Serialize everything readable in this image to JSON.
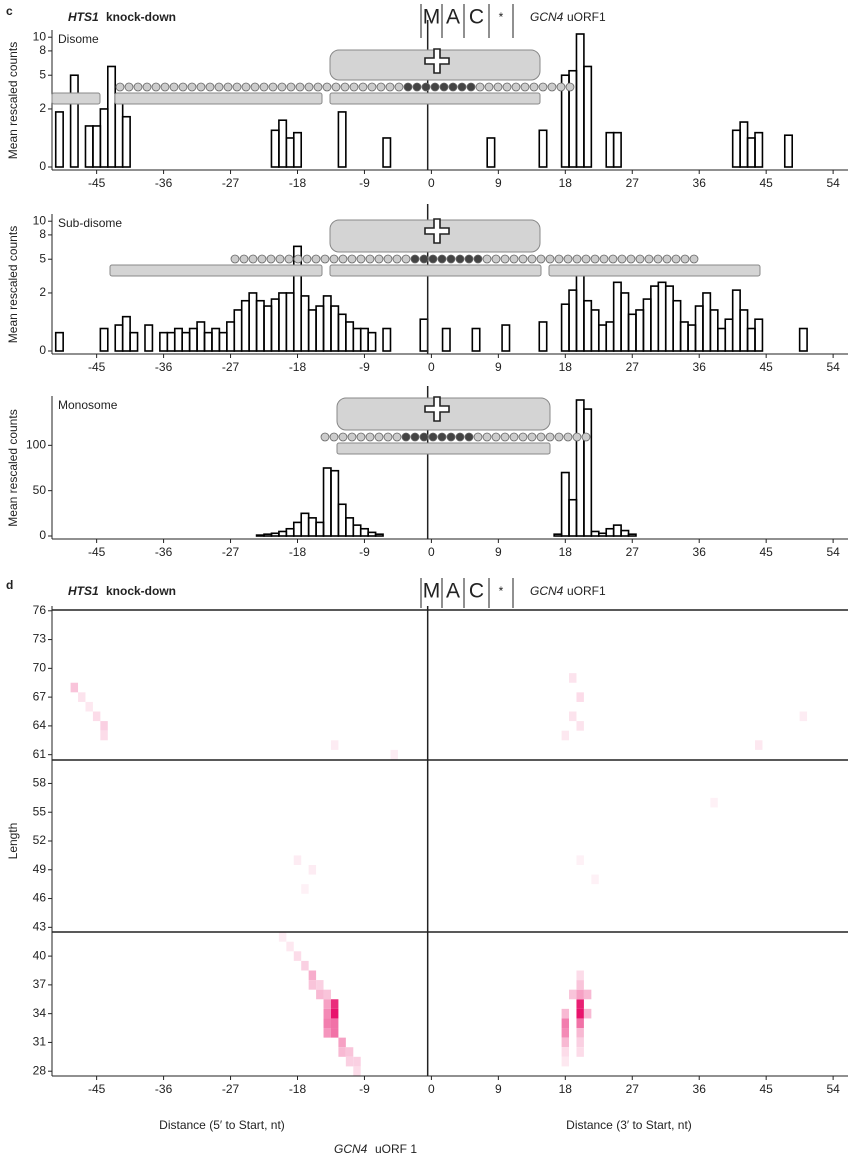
{
  "panels": [
    {
      "label": "c",
      "gene": "HTS1",
      "condition": "knock-down",
      "codons": [
        "M",
        "A",
        "C",
        "*"
      ],
      "orf_gene": "GCN4",
      "orf": "uORF1"
    },
    {
      "label": "d",
      "gene": "HTS1",
      "condition": "knock-down",
      "codons": [
        "M",
        "A",
        "C",
        "*"
      ],
      "orf_gene": "GCN4",
      "orf": "uORF1"
    }
  ],
  "chart_data": [
    {
      "type": "bar",
      "title": "Disome",
      "y_label": "Mean rescaled counts",
      "color": "#000000",
      "yscale": "sqrt",
      "x": [
        -50,
        -48,
        -46,
        -45,
        -44,
        -43,
        -42,
        -41,
        -21,
        -20,
        -19,
        -18,
        -12,
        -6,
        8,
        15,
        18,
        19,
        20,
        21,
        24,
        25,
        41,
        42,
        43,
        44,
        48
      ],
      "values": [
        1.8,
        5,
        1,
        1,
        2,
        6,
        3,
        1.5,
        0.8,
        1.3,
        0.5,
        0.7,
        1.8,
        0.5,
        0.5,
        0.8,
        5,
        5.5,
        10.5,
        6,
        0.7,
        0.7,
        0.8,
        1.2,
        0.5,
        0.7,
        0.6
      ],
      "xlim": [
        -51,
        56
      ],
      "xticks": [
        -45,
        -36,
        -27,
        -18,
        -9,
        0,
        9,
        18,
        27,
        36,
        45,
        54
      ],
      "ylim": [
        0,
        10.5
      ],
      "yticks": [
        0,
        2,
        5,
        8,
        10
      ]
    },
    {
      "type": "bar",
      "title": "Sub-disome",
      "y_label": "Mean rescaled counts",
      "color": "#000000",
      "yscale": "sqrt",
      "x": [
        -50,
        -44,
        -42,
        -41,
        -40,
        -38,
        -36,
        -35,
        -34,
        -33,
        -32,
        -31,
        -30,
        -29,
        -28,
        -27,
        -26,
        -25,
        -24,
        -23,
        -22,
        -21,
        -20,
        -19,
        -18,
        -17,
        -16,
        -15,
        -14,
        -13,
        -12,
        -11,
        -10,
        -9,
        -8,
        -6,
        -1,
        2,
        6,
        10,
        15,
        18,
        19,
        20,
        21,
        22,
        23,
        24,
        25,
        26,
        27,
        28,
        29,
        30,
        31,
        32,
        33,
        34,
        35,
        36,
        37,
        38,
        39,
        40,
        41,
        42,
        43,
        44,
        50
      ],
      "values": [
        0.2,
        0.3,
        0.4,
        0.7,
        0.2,
        0.4,
        0.2,
        0.2,
        0.3,
        0.2,
        0.3,
        0.5,
        0.2,
        0.3,
        0.2,
        0.5,
        1,
        1.5,
        2,
        1.5,
        1.2,
        1.6,
        2,
        2,
        6.5,
        1.8,
        1,
        1.2,
        1.8,
        1.2,
        0.8,
        0.5,
        0.3,
        0.3,
        0.2,
        0.3,
        0.6,
        0.3,
        0.3,
        0.4,
        0.5,
        1.3,
        2.2,
        3.5,
        1.5,
        1,
        0.4,
        0.5,
        2.8,
        2,
        0.8,
        1,
        1.6,
        2.5,
        2.8,
        2.5,
        1.5,
        0.5,
        0.4,
        1.2,
        2,
        1,
        0.3,
        0.6,
        2.2,
        1,
        0.3,
        0.6,
        0.3
      ],
      "xlim": [
        -51,
        56
      ],
      "xticks": [
        -45,
        -36,
        -27,
        -18,
        -9,
        0,
        9,
        18,
        27,
        36,
        45,
        54
      ],
      "ylim": [
        0,
        10.5
      ],
      "yticks": [
        0,
        2,
        5,
        8,
        10
      ]
    },
    {
      "type": "bar",
      "title": "Monosome",
      "y_label": "Mean rescaled counts",
      "color": "#000000",
      "yscale": "linear",
      "x": [
        -23,
        -22,
        -21,
        -20,
        -19,
        -18,
        -17,
        -16,
        -15,
        -14,
        -13,
        -12,
        -11,
        -10,
        -9,
        -8,
        -7,
        17,
        18,
        19,
        20,
        21,
        22,
        23,
        24,
        25,
        26,
        27
      ],
      "values": [
        1,
        2,
        3,
        5,
        8,
        15,
        25,
        20,
        15,
        75,
        72,
        35,
        20,
        12,
        8,
        4,
        2,
        2,
        70,
        40,
        150,
        140,
        5,
        3,
        8,
        12,
        6,
        2
      ],
      "xlim": [
        -51,
        56
      ],
      "xticks": [
        -45,
        -36,
        -27,
        -18,
        -9,
        0,
        9,
        18,
        27,
        36,
        45,
        54
      ],
      "ylim": [
        0,
        150
      ],
      "yticks": [
        0,
        50,
        100
      ]
    },
    {
      "type": "heatmap",
      "y_label": "Length",
      "x_labels": [
        "Distance (5′ to Start, nt)",
        "Distance (3′ to Start, nt)"
      ],
      "footer_gene": "GCN4",
      "footer": "uORF 1",
      "color": "#e8146c",
      "x": [
        -18,
        -17,
        -16,
        -16,
        -15,
        -15,
        -14,
        -14,
        -13,
        -13,
        -14,
        -14,
        -13,
        -14,
        -13,
        -12,
        -12,
        -11,
        -11,
        -10,
        -10,
        -19,
        -20,
        18,
        18,
        18,
        18,
        18,
        18,
        20,
        20,
        20,
        20,
        19,
        21,
        21,
        20,
        20,
        20,
        20,
        20,
        -48,
        -47,
        -46,
        -45,
        -44,
        -44,
        19,
        20,
        19,
        20,
        18,
        -13,
        -5,
        44,
        50,
        -18,
        -16,
        -17,
        20,
        22,
        38
      ],
      "y": [
        40,
        39,
        38,
        37,
        37,
        36,
        36,
        35,
        35,
        34,
        34,
        33,
        33,
        32,
        32,
        31,
        30,
        30,
        29,
        29,
        28,
        41,
        42,
        33,
        32,
        31,
        34,
        30,
        29,
        35,
        34,
        33,
        36,
        36,
        36,
        34,
        37,
        38,
        32,
        31,
        30,
        68,
        67,
        66,
        65,
        64,
        63,
        69,
        67,
        65,
        64,
        63,
        62,
        61,
        62,
        65,
        50,
        49,
        47,
        50,
        48,
        56
      ],
      "values": [
        0.15,
        0.2,
        0.35,
        0.25,
        0.2,
        0.3,
        0.25,
        0.4,
        0.9,
        1,
        0.5,
        0.55,
        0.6,
        0.45,
        0.6,
        0.4,
        0.3,
        0.25,
        0.2,
        0.2,
        0.15,
        0.1,
        0.08,
        0.55,
        0.5,
        0.3,
        0.3,
        0.15,
        0.1,
        0.95,
        1,
        0.6,
        0.4,
        0.25,
        0.3,
        0.3,
        0.25,
        0.15,
        0.3,
        0.2,
        0.15,
        0.25,
        0.12,
        0.1,
        0.15,
        0.2,
        0.15,
        0.12,
        0.15,
        0.12,
        0.12,
        0.1,
        0.08,
        0.08,
        0.1,
        0.08,
        0.08,
        0.08,
        0.06,
        0.06,
        0.06,
        0.06
      ],
      "xlim": [
        -51,
        56
      ],
      "xticks": [
        -45,
        -36,
        -27,
        -18,
        -9,
        0,
        9,
        18,
        27,
        36,
        45,
        54
      ],
      "ylim": [
        27.5,
        76.5
      ],
      "yticks": [
        28,
        31,
        34,
        37,
        40,
        43,
        46,
        49,
        52,
        55,
        58,
        61,
        64,
        67,
        70,
        73,
        76
      ]
    }
  ]
}
